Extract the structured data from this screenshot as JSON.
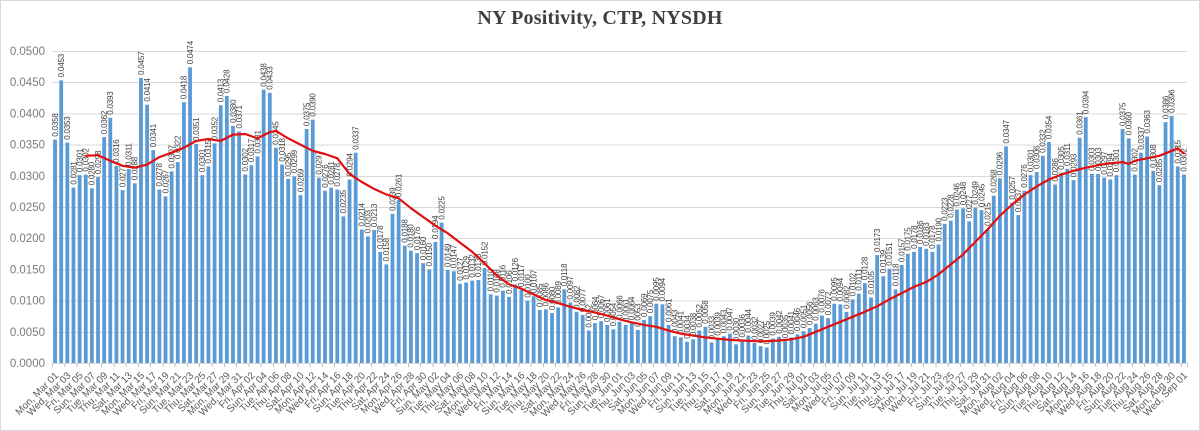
{
  "chart_data": {
    "type": "bar",
    "title": "NY Positivity, CTP, NYSDH",
    "ylabel": "",
    "xlabel": "",
    "ylim": [
      0,
      0.05
    ],
    "grid": true,
    "bar_color": "#5B9BD5",
    "line_color": "#E01010",
    "grid_color": "#D9D9D9",
    "tick_color": "#BFBFBF",
    "value_label_decimals": 4,
    "y_ticks": [
      "0.0000",
      "0.0050",
      "0.0100",
      "0.0150",
      "0.0200",
      "0.0250",
      "0.0300",
      "0.0350",
      "0.0400",
      "0.0450",
      "0.0500"
    ],
    "x_tick_every_n_bars": 2,
    "x_tick_labels": [
      "Mon, Mar 01",
      "Wed, Mar 03",
      "Fri, Mar 05",
      "Sun, Mar 07",
      "Tue, Mar 09",
      "Thu, Mar 11",
      "Sat, Mar 13",
      "Mon, Mar 15",
      "Wed, Mar 17",
      "Fri, Mar 19",
      "Sun, Mar 21",
      "Tue, Mar 23",
      "Thu, Mar 25",
      "Sat, Mar 27",
      "Mon, Mar 29",
      "Wed, Mar 31",
      "Fri, Apr 02",
      "Sun, Apr 04",
      "Tue, Apr 06",
      "Thu, Apr 08",
      "Sat, Apr 10",
      "Mon, Apr 12",
      "Wed, Apr 14",
      "Fri, Apr 16",
      "Sun, Apr 18",
      "Tue, Apr 20",
      "Thu, Apr 22",
      "Sat, Apr 24",
      "Mon, Apr 26",
      "Wed, Apr 28",
      "Fri, Apr 30",
      "Sun, May 02",
      "Tue, May 04",
      "Thu, May 06",
      "Sat, May 08",
      "Mon, May 10",
      "Wed, May 12",
      "Fri, May 14",
      "Sun, May 16",
      "Tue, May 18",
      "Thu, May 20",
      "Sat, May 22",
      "Mon, May 24",
      "Wed, May 26",
      "Fri, May 28",
      "Sun, May 30",
      "Tue, Jun 01",
      "Thu, Jun 03",
      "Sat, Jun 05",
      "Mon, Jun 07",
      "Wed, Jun 09",
      "Fri, Jun 11",
      "Sun, Jun 13",
      "Tue, Jun 15",
      "Thu, Jun 17",
      "Sat, Jun 19",
      "Mon, Jun 21",
      "Wed, Jun 23",
      "Fri, Jun 25",
      "Sun, Jun 27",
      "Tue, Jun 29",
      "Thu, Jul 01",
      "Sat, Jul 03",
      "Mon, Jul 05",
      "Wed, Jul 07",
      "Fri, Jul 09",
      "Sun, Jul 11",
      "Tue, Jul 13",
      "Thu, Jul 15",
      "Sat, Jul 17",
      "Mon, Jul 19",
      "Wed, Jul 21",
      "Fri, Jul 23",
      "Sun, Jul 25",
      "Tue, Jul 27",
      "Thu, Jul 29",
      "Sat, Jul 31",
      "Mon, Aug 02",
      "Wed, Aug 04",
      "Fri, Aug 06",
      "Sun, Aug 08",
      "Tue, Aug 10",
      "Thu, Aug 12",
      "Sat, Aug 14",
      "Mon, Aug 16",
      "Wed, Aug 18",
      "Fri, Aug 20",
      "Sun, Aug 22",
      "Tue, Aug 24",
      "Thu, Aug 26",
      "Sat, Aug 28",
      "Mon, Aug 30",
      "Wed, Sep 01"
    ],
    "values": [
      0.0358,
      0.0453,
      0.0353,
      0.0281,
      0.0301,
      0.0302,
      0.028,
      0.0298,
      0.0362,
      0.0393,
      0.0316,
      0.0277,
      0.0311,
      0.0288,
      0.0457,
      0.0414,
      0.0341,
      0.0278,
      0.0267,
      0.0307,
      0.0322,
      0.0418,
      0.0474,
      0.0351,
      0.0301,
      0.0315,
      0.0352,
      0.0413,
      0.0428,
      0.038,
      0.0371,
      0.0302,
      0.0317,
      0.0331,
      0.0438,
      0.0433,
      0.0345,
      0.0318,
      0.0295,
      0.0299,
      0.0269,
      0.0375,
      0.039,
      0.0297,
      0.0276,
      0.0281,
      0.0278,
      0.0235,
      0.0294,
      0.0337,
      0.0214,
      0.0203,
      0.0213,
      0.0178,
      0.0158,
      0.0239,
      0.0261,
      0.0188,
      0.018,
      0.0176,
      0.016,
      0.015,
      0.0194,
      0.0225,
      0.0149,
      0.0147,
      0.0127,
      0.0129,
      0.0132,
      0.0133,
      0.0152,
      0.011,
      0.0108,
      0.0116,
      0.0106,
      0.0126,
      0.0117,
      0.01,
      0.0107,
      0.0085,
      0.0086,
      0.008,
      0.0089,
      0.0118,
      0.0097,
      0.0082,
      0.0077,
      0.0052,
      0.0064,
      0.0067,
      0.0061,
      0.0054,
      0.0066,
      0.0061,
      0.0064,
      0.0053,
      0.0069,
      0.0075,
      0.0095,
      0.0094,
      0.0061,
      0.0043,
      0.0041,
      0.0034,
      0.0038,
      0.0052,
      0.0058,
      0.0033,
      0.0039,
      0.0043,
      0.0047,
      0.003,
      0.0036,
      0.0044,
      0.0032,
      0.0027,
      0.0025,
      0.0039,
      0.0042,
      0.0035,
      0.0041,
      0.0046,
      0.0051,
      0.0056,
      0.0063,
      0.0076,
      0.0072,
      0.0095,
      0.0094,
      0.0082,
      0.0102,
      0.0111,
      0.0128,
      0.0105,
      0.0173,
      0.0139,
      0.0151,
      0.0118,
      0.0157,
      0.0175,
      0.0178,
      0.0186,
      0.0183,
      0.0178,
      0.019,
      0.0223,
      0.0228,
      0.0246,
      0.0248,
      0.0227,
      0.0249,
      0.0245,
      0.0215,
      0.0268,
      0.0296,
      0.0347,
      0.0257,
      0.0237,
      0.0276,
      0.0301,
      0.0306,
      0.0332,
      0.0354,
      0.0286,
      0.0305,
      0.0311,
      0.0293,
      0.0361,
      0.0394,
      0.0303,
      0.0303,
      0.0297,
      0.0294,
      0.0301,
      0.0375,
      0.036,
      0.0302,
      0.0337,
      0.0363,
      0.0308,
      0.0285,
      0.0386,
      0.0396,
      0.0315,
      0.0302
    ],
    "line_series": {
      "name": "red-trend-line",
      "points": [
        [
          5,
          0.0332
        ],
        [
          7,
          0.0333
        ],
        [
          9,
          0.0324
        ],
        [
          11,
          0.0316
        ],
        [
          13,
          0.0313
        ],
        [
          15,
          0.0318
        ],
        [
          17,
          0.033
        ],
        [
          19,
          0.0337
        ],
        [
          21,
          0.0345
        ],
        [
          23,
          0.0356
        ],
        [
          25,
          0.0359
        ],
        [
          27,
          0.0356
        ],
        [
          29,
          0.0366
        ],
        [
          31,
          0.0367
        ],
        [
          33,
          0.036
        ],
        [
          35,
          0.037
        ],
        [
          36,
          0.0372
        ],
        [
          38,
          0.036
        ],
        [
          40,
          0.035
        ],
        [
          42,
          0.034
        ],
        [
          44,
          0.0335
        ],
        [
          46,
          0.0328
        ],
        [
          48,
          0.0303
        ],
        [
          50,
          0.029
        ],
        [
          52,
          0.0279
        ],
        [
          54,
          0.027
        ],
        [
          56,
          0.0264
        ],
        [
          58,
          0.0248
        ],
        [
          60,
          0.0234
        ],
        [
          62,
          0.022
        ],
        [
          64,
          0.0208
        ],
        [
          66,
          0.0193
        ],
        [
          68,
          0.0178
        ],
        [
          70,
          0.016
        ],
        [
          72,
          0.014
        ],
        [
          74,
          0.0126
        ],
        [
          76,
          0.0119
        ],
        [
          78,
          0.011
        ],
        [
          80,
          0.0101
        ],
        [
          82,
          0.0096
        ],
        [
          84,
          0.009
        ],
        [
          86,
          0.0085
        ],
        [
          88,
          0.0081
        ],
        [
          90,
          0.0076
        ],
        [
          92,
          0.007
        ],
        [
          94,
          0.0065
        ],
        [
          96,
          0.0061
        ],
        [
          98,
          0.0058
        ],
        [
          100,
          0.0052
        ],
        [
          102,
          0.0047
        ],
        [
          104,
          0.0044
        ],
        [
          106,
          0.0041
        ],
        [
          108,
          0.0039
        ],
        [
          110,
          0.0037
        ],
        [
          112,
          0.0036
        ],
        [
          114,
          0.0035
        ],
        [
          116,
          0.0035
        ],
        [
          118,
          0.0036
        ],
        [
          120,
          0.0038
        ],
        [
          122,
          0.0042
        ],
        [
          124,
          0.005
        ],
        [
          126,
          0.0058
        ],
        [
          128,
          0.0066
        ],
        [
          130,
          0.0074
        ],
        [
          132,
          0.0082
        ],
        [
          134,
          0.0091
        ],
        [
          136,
          0.0102
        ],
        [
          138,
          0.0112
        ],
        [
          140,
          0.0122
        ],
        [
          142,
          0.013
        ],
        [
          144,
          0.0142
        ],
        [
          146,
          0.0158
        ],
        [
          148,
          0.0174
        ],
        [
          150,
          0.0194
        ],
        [
          152,
          0.0214
        ],
        [
          154,
          0.0236
        ],
        [
          156,
          0.0254
        ],
        [
          158,
          0.027
        ],
        [
          160,
          0.0283
        ],
        [
          162,
          0.0294
        ],
        [
          164,
          0.0302
        ],
        [
          166,
          0.0308
        ],
        [
          168,
          0.0313
        ],
        [
          170,
          0.0317
        ],
        [
          172,
          0.032
        ],
        [
          174,
          0.0322
        ],
        [
          175,
          0.0319
        ],
        [
          176,
          0.0324
        ],
        [
          178,
          0.0328
        ],
        [
          180,
          0.0332
        ],
        [
          182,
          0.034
        ],
        [
          183,
          0.0344
        ],
        [
          184,
          0.0336
        ]
      ]
    }
  }
}
